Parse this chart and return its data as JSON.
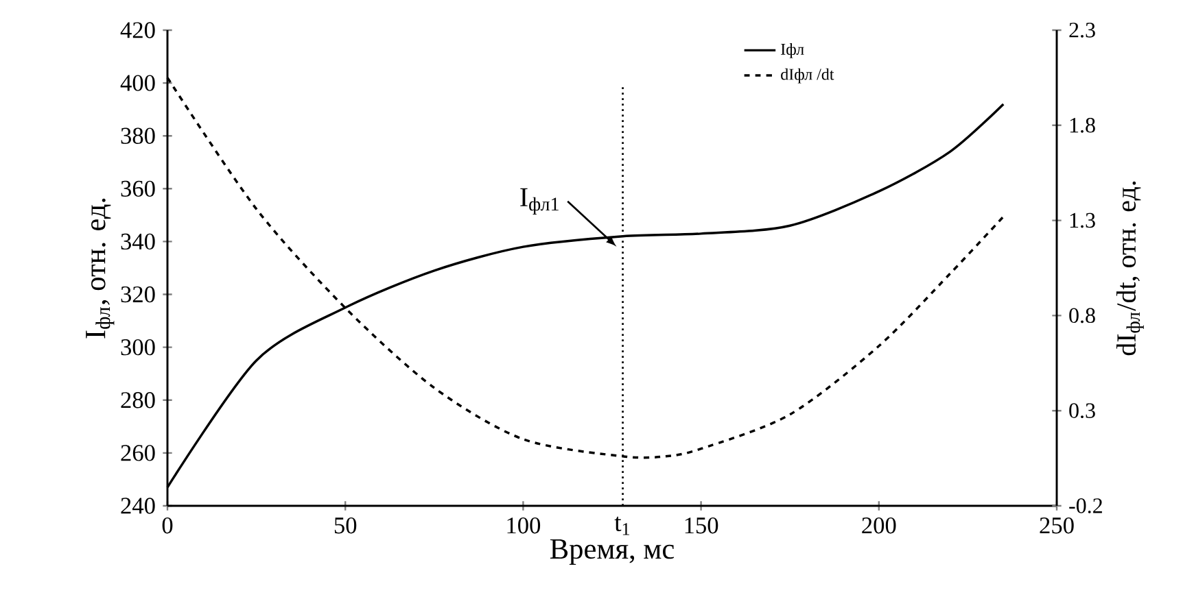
{
  "chart_data": {
    "type": "line",
    "xlabel": "Время, мс",
    "ylabel": "I$_{фл}$, отн. ед.",
    "y2label": "dI$_{фл}$/dt, отн. ед.",
    "xlim": [
      0,
      250
    ],
    "xticks": [
      0,
      50,
      100,
      150,
      200,
      250
    ],
    "ylim": [
      240,
      420
    ],
    "yticks": [
      240,
      260,
      280,
      300,
      320,
      340,
      360,
      380,
      400,
      420
    ],
    "y2lim": [
      -0.2,
      2.3
    ],
    "y2ticks": [
      -0.2,
      0.3,
      0.8,
      1.3,
      1.8,
      2.3
    ],
    "legend": "top right",
    "grid": false,
    "series": [
      {
        "name": "Iфл",
        "color": "#000000",
        "line_style": "solid",
        "x": [
          0,
          25,
          50,
          75,
          100,
          128,
          150,
          175,
          200,
          220,
          235
        ],
        "values": [
          247,
          295,
          315,
          329,
          338,
          342,
          343,
          346,
          359,
          374,
          392
        ]
      },
      {
        "name": "dIфл /dt",
        "color": "#000000",
        "line_style": "dashed",
        "axis": "y2",
        "x": [
          0,
          25,
          50,
          75,
          100,
          128,
          140,
          150,
          175,
          200,
          220,
          235
        ],
        "values": [
          2.05,
          1.36,
          0.84,
          0.42,
          0.15,
          0.06,
          0.06,
          0.1,
          0.28,
          0.64,
          1.02,
          1.32
        ]
      }
    ],
    "ref_lines": [
      {
        "axis": "x",
        "value": 128,
        "label": "t$_{1}$",
        "line_style": "dotted",
        "color": "#000000"
      }
    ],
    "annotations": [
      "I$_{фл1}$"
    ]
  }
}
